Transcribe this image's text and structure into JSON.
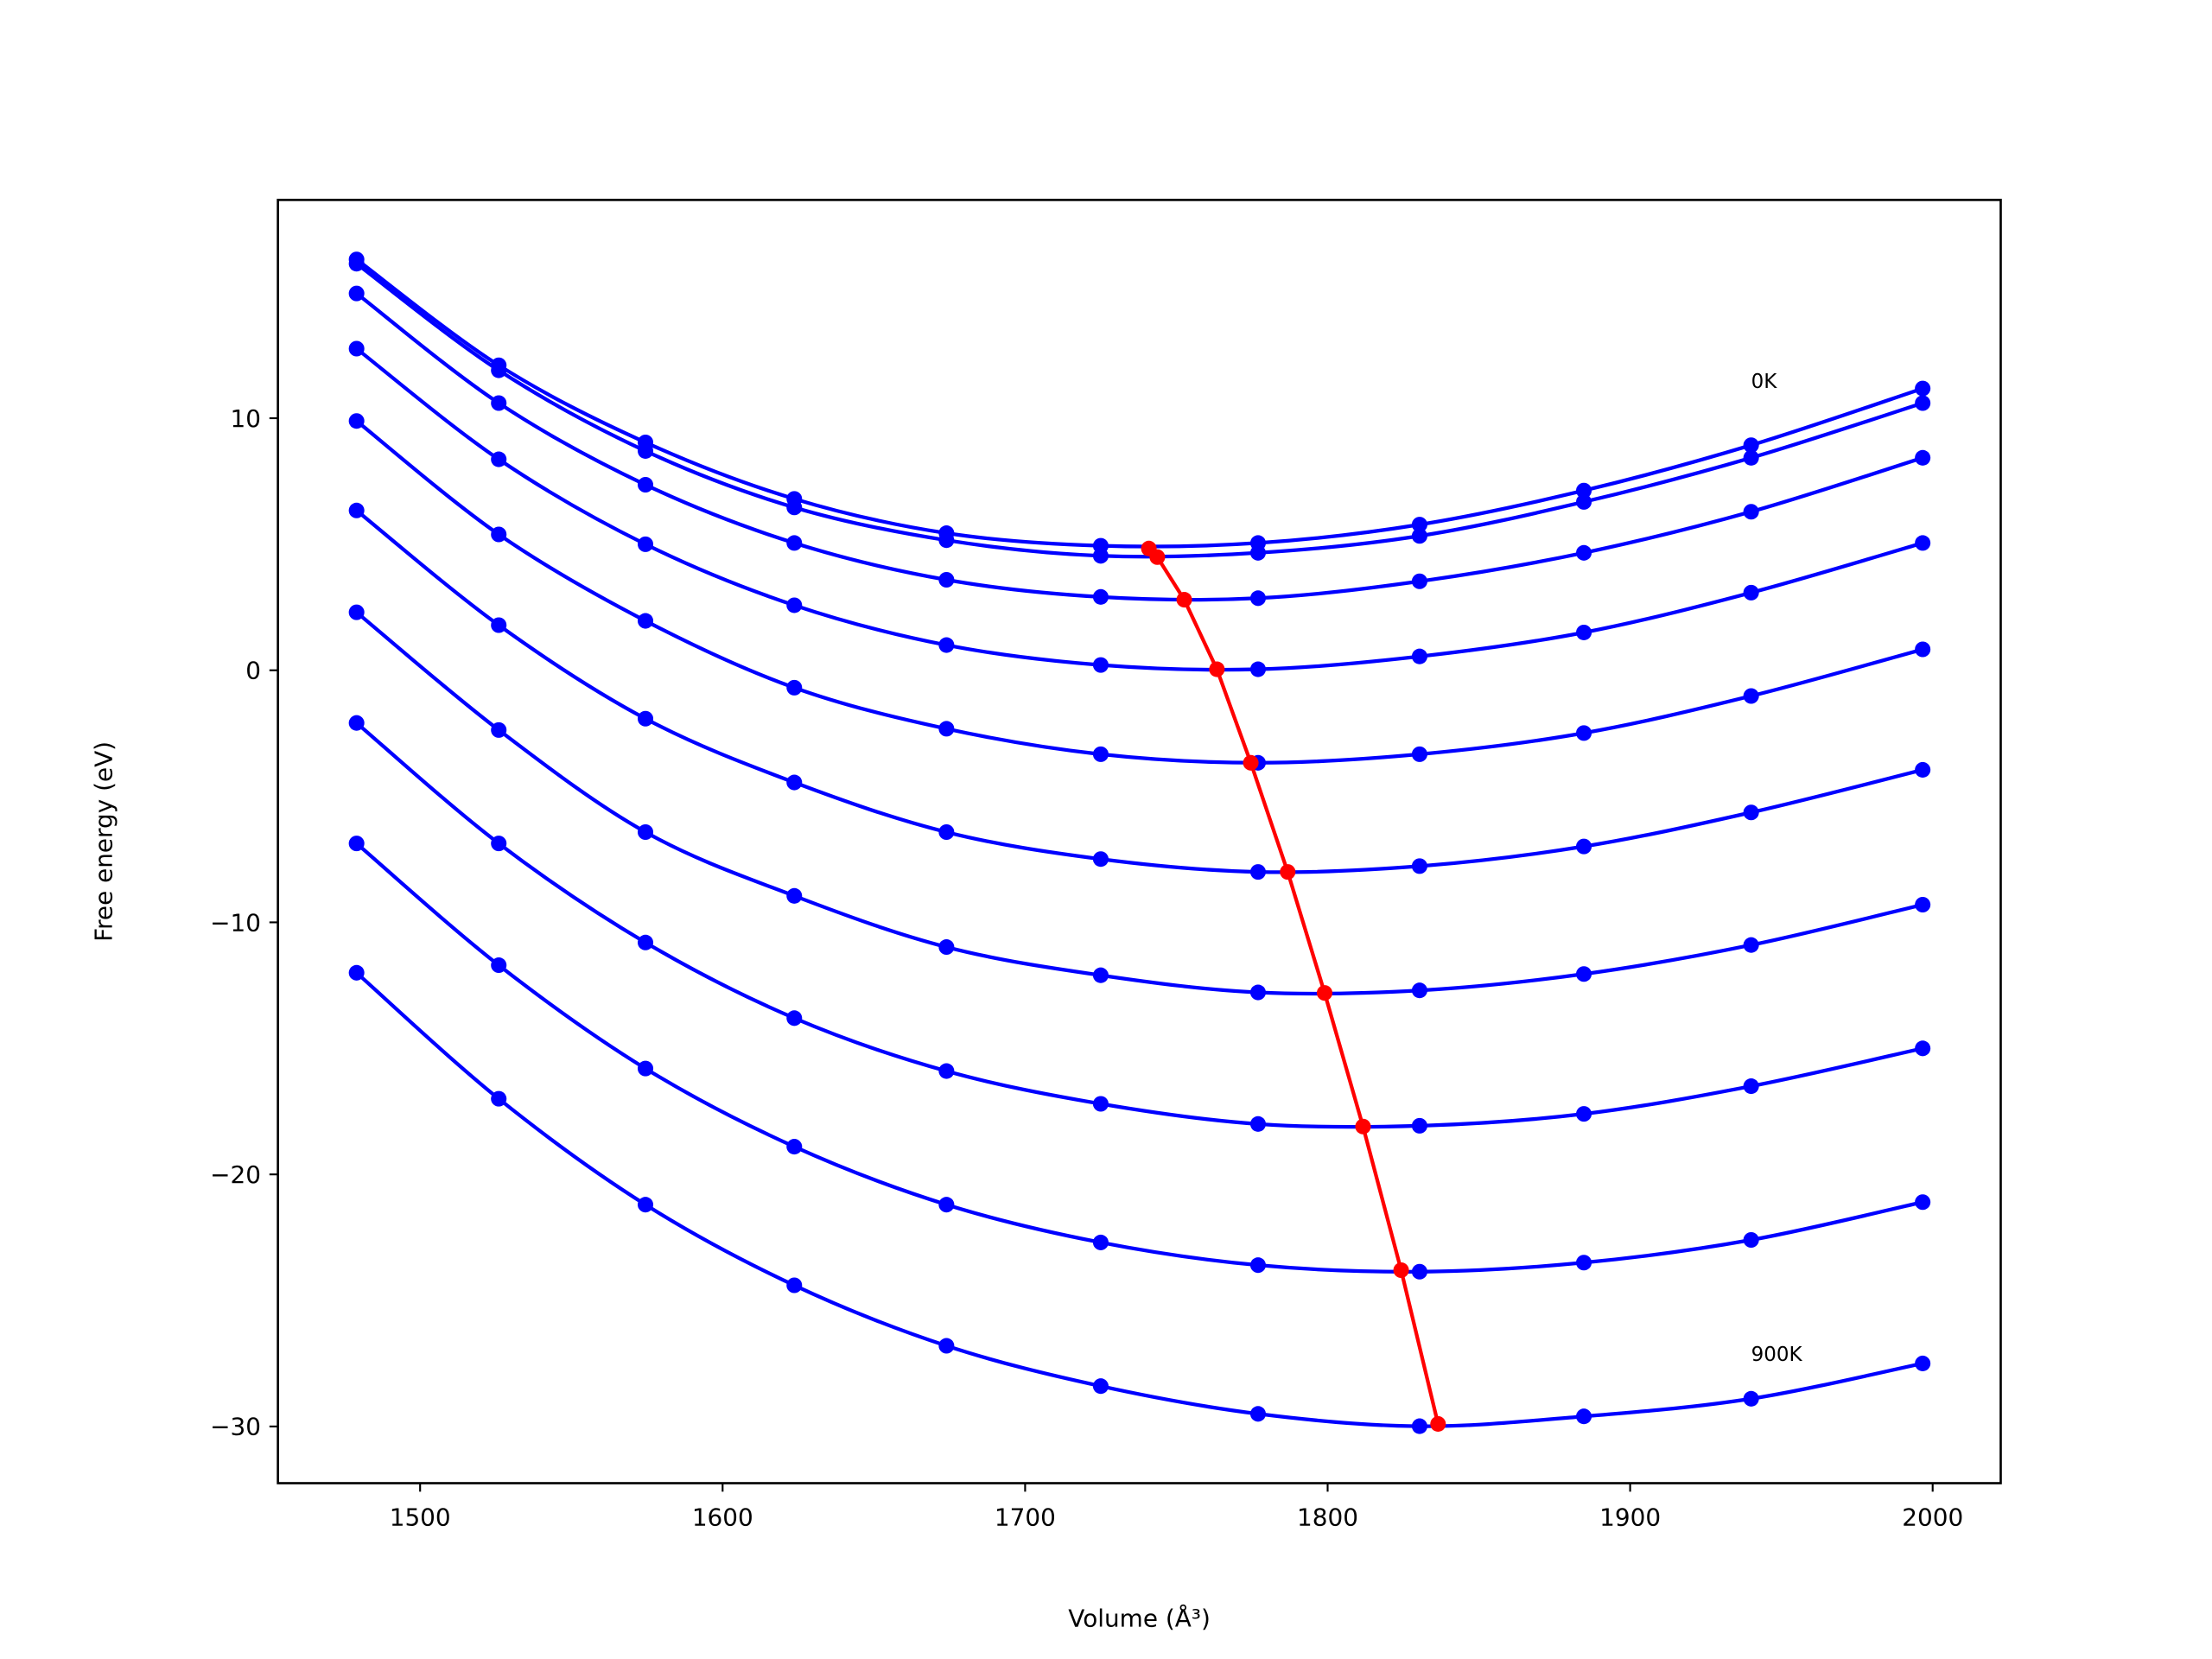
{
  "chart_data": {
    "type": "line",
    "title": "",
    "xlabel": "Volume (Å³)",
    "ylabel": "Free energy (eV)",
    "xlim": [
      1453,
      2022.5
    ],
    "ylim": [
      -32.25,
      18.66
    ],
    "xticks": [
      1500,
      1600,
      1700,
      1800,
      1900,
      2000
    ],
    "yticks": [
      10,
      0,
      -10,
      -20,
      -30
    ],
    "ytick_labels": [
      "10",
      "0",
      "−10",
      "−20",
      "−30"
    ],
    "grid": false,
    "colors": {
      "curves": "#0000ff",
      "minima": "#ff0000"
    },
    "x": [
      1479,
      1526,
      1574.5,
      1623.7,
      1674,
      1725,
      1777,
      1830.4,
      1884.7,
      1940,
      1996.7
    ],
    "series": [
      {
        "values": [
          16.3,
          12.1,
          9.04,
          6.8,
          5.44,
          4.94,
          5.05,
          5.78,
          7.13,
          8.93,
          11.18
        ]
      },
      {
        "values": [
          16.13,
          11.9,
          8.7,
          6.46,
          5.16,
          4.54,
          4.66,
          5.33,
          6.68,
          8.43,
          10.6
        ]
      },
      {
        "values": [
          14.95,
          10.6,
          7.36,
          5.05,
          3.59,
          2.91,
          2.86,
          3.53,
          4.66,
          6.29,
          8.43
        ]
      },
      {
        "values": [
          12.76,
          8.37,
          5.0,
          2.58,
          1.0,
          0.21,
          0.04,
          0.55,
          1.5,
          3.08,
          5.05
        ]
      },
      {
        "values": [
          9.89,
          5.39,
          1.96,
          -0.69,
          -2.32,
          -3.33,
          -3.67,
          -3.33,
          -2.49,
          -1.02,
          0.83
        ]
      },
      {
        "values": [
          6.34,
          1.79,
          -1.92,
          -4.45,
          -6.42,
          -7.49,
          -8.0,
          -7.77,
          -6.99,
          -5.64,
          -3.95
        ]
      },
      {
        "values": [
          2.3,
          -2.37,
          -6.42,
          -8.95,
          -10.98,
          -12.1,
          -12.78,
          -12.7,
          -12.05,
          -10.9,
          -9.3
        ]
      },
      {
        "values": [
          -2.09,
          -6.87,
          -10.8,
          -13.8,
          -15.9,
          -17.2,
          -18.0,
          -18.07,
          -17.6,
          -16.5,
          -15.0
        ]
      },
      {
        "values": [
          -6.87,
          -11.7,
          -15.8,
          -18.9,
          -21.2,
          -22.7,
          -23.6,
          -23.86,
          -23.5,
          -22.6,
          -21.1
        ]
      },
      {
        "values": [
          -12.0,
          -17.0,
          -21.2,
          -24.4,
          -26.8,
          -28.4,
          -29.5,
          -29.99,
          -29.6,
          -28.9,
          -27.5
        ]
      }
    ],
    "minima": {
      "x": [
        1740.9,
        1743.7,
        1752.6,
        1763.4,
        1774.6,
        1786.8,
        1799,
        1811.7,
        1824.3,
        1836.5
      ],
      "y": [
        4.83,
        4.49,
        2.8,
        0.04,
        -3.67,
        -8.0,
        -12.8,
        -18.1,
        -23.8,
        -29.9
      ]
    },
    "annotations": [
      {
        "text": "0K",
        "x": 1940,
        "y": 11.2
      },
      {
        "text": "900K",
        "x": 1940,
        "y": -27.4
      }
    ]
  }
}
